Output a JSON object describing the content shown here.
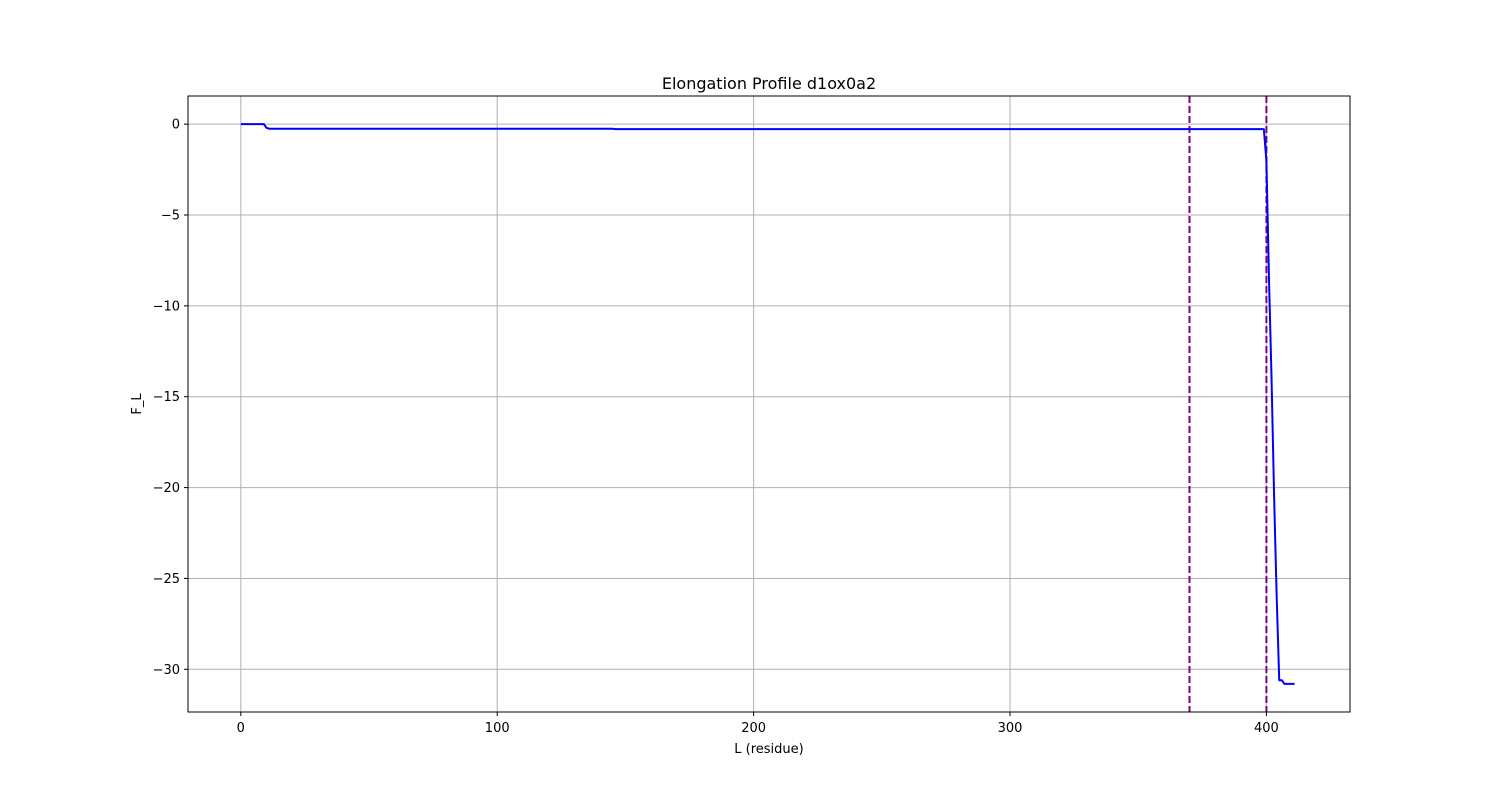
{
  "chart_data": {
    "type": "line",
    "title": "Elongation Profile d1ox0a2",
    "xlabel": "L (residue)",
    "ylabel": "F_L",
    "xlim": [
      -20.6,
      432.6
    ],
    "ylim": [
      -32.35,
      1.55
    ],
    "xticks": [
      0,
      100,
      200,
      300,
      400
    ],
    "xtick_labels": [
      "0",
      "100",
      "200",
      "300",
      "400"
    ],
    "yticks": [
      0,
      -5,
      -10,
      -15,
      -20,
      -25,
      -30
    ],
    "ytick_labels": [
      "0",
      "−5",
      "−10",
      "−15",
      "−20",
      "−25",
      "−30"
    ],
    "grid": true,
    "series": [
      {
        "color": "#0000ff",
        "x": [
          0,
          9,
          10,
          11,
          145,
          146,
          399,
          400,
          401,
          402,
          403,
          404,
          405,
          406,
          407,
          411
        ],
        "y": [
          0,
          0,
          -0.2,
          -0.25,
          -0.25,
          -0.27,
          -0.27,
          -2.0,
          -8.5,
          -14.0,
          -20.5,
          -26.0,
          -30.6,
          -30.6,
          -30.8,
          -30.8
        ]
      }
    ],
    "vlines": [
      {
        "x": 370,
        "color": "#800080",
        "style": "dashed"
      },
      {
        "x": 400,
        "color": "#800080",
        "style": "dashed"
      }
    ]
  }
}
